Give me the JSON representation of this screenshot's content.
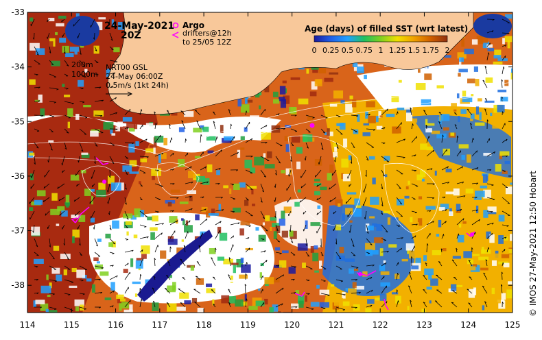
{
  "map": {
    "date": "24-May-2021",
    "time": "20Z",
    "argo_label": "Argo",
    "drifters_line1": "drifters@12h",
    "drifters_line2": "to 25/05 12Z",
    "isobath_shallow": "200m",
    "isobath_deep": "1000m",
    "altimetry_product": "NRT00 GSL",
    "altimetry_time": "24-May 06:00Z",
    "velocity_scale": "0.5m/s (1kt 24h)",
    "credit": "© IMOS 27-May-2021 12:50 Hobart"
  },
  "lon_axis": {
    "min": 114,
    "max": 125,
    "labels": [
      "114",
      "115",
      "116",
      "117",
      "118",
      "119",
      "120",
      "121",
      "122",
      "123",
      "124",
      "125"
    ]
  },
  "lat_axis": {
    "min": -38.5,
    "max": -33,
    "labels": [
      "-33",
      "-34",
      "-35",
      "-36",
      "-37",
      "-38"
    ]
  },
  "colorbar": {
    "title": "Age (days) of filled SST (wrt latest)",
    "min": 0,
    "max": 2,
    "ticks": [
      "0",
      "0.25",
      "0.5",
      "0.75",
      "1",
      "1.25",
      "1.5",
      "1.75",
      "2"
    ],
    "stops": [
      "#1a1aa0",
      "#2060e8",
      "#20a0ff",
      "#20c060",
      "#80d020",
      "#f0e000",
      "#f0a000",
      "#d06000",
      "#903010"
    ]
  },
  "colors": {
    "land": "#f8c89a",
    "ocean_fill": "#d06010",
    "cloud": "#ffffff"
  }
}
